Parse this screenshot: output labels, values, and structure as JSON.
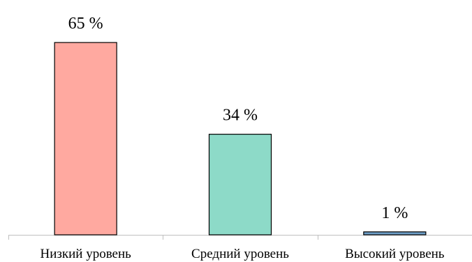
{
  "chart_data": {
    "type": "bar",
    "categories": [
      "Низкий уровень",
      "Средний уровень",
      "Высокий уровень"
    ],
    "values": [
      65,
      34,
      1
    ],
    "data_labels": [
      "65 %",
      "34 %",
      "1 %"
    ],
    "ylim": [
      0,
      80
    ],
    "grid": false,
    "legend": "none",
    "colors": [
      "#FFA9A0",
      "#8DDAC8",
      "#6D9DC5"
    ],
    "edge_color": "#000000",
    "axis_color": "#BFBFBF"
  }
}
